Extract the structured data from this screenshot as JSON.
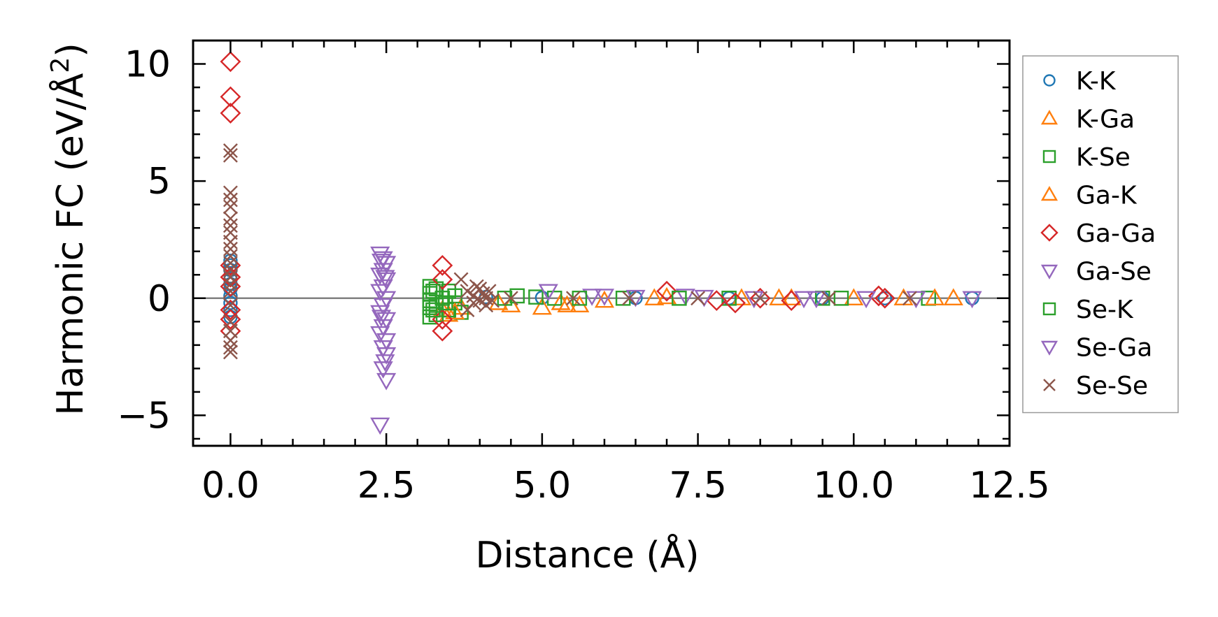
{
  "chart_data": {
    "type": "scatter",
    "title": "",
    "xlabel": "Distance (Å)",
    "ylabel_main": "Harmonic FC (eV/Å",
    "ylabel_sup": "2",
    "ylabel_close": ")",
    "xlim": [
      -0.6,
      12.5
    ],
    "ylim": [
      -6.3,
      11.0
    ],
    "xticks": [
      0.0,
      2.5,
      5.0,
      7.5,
      10.0,
      12.5
    ],
    "xtick_labels": [
      "0.0",
      "2.5",
      "5.0",
      "7.5",
      "10.0",
      "12.5"
    ],
    "yticks": [
      -5,
      0,
      5,
      10
    ],
    "ytick_labels": [
      "−5",
      "0",
      "5",
      "10"
    ],
    "reference_line_y": 0,
    "legend_position": "right",
    "series": [
      {
        "name": "K-K",
        "marker": "circle",
        "color": "#1f77b4",
        "points": [
          [
            0,
            1.6
          ],
          [
            0,
            1.2
          ],
          [
            0,
            0.8
          ],
          [
            0,
            0.4
          ],
          [
            0,
            0.1
          ],
          [
            0,
            -0.2
          ],
          [
            0,
            -0.5
          ],
          [
            0,
            -0.8
          ],
          [
            0,
            1.4
          ],
          [
            0,
            0.6
          ],
          [
            4.1,
            0.05
          ],
          [
            5.0,
            0.02
          ],
          [
            6.5,
            0.01
          ],
          [
            8.0,
            0.0
          ],
          [
            9.5,
            0.0
          ],
          [
            10.5,
            0.0
          ],
          [
            11.9,
            0.0
          ]
        ]
      },
      {
        "name": "K-Ga",
        "marker": "triangle-up",
        "color": "#ff7f0e",
        "points": [
          [
            3.4,
            -0.5
          ],
          [
            3.5,
            -0.7
          ],
          [
            3.7,
            -0.4
          ],
          [
            4.5,
            -0.3
          ],
          [
            5.0,
            -0.4
          ],
          [
            5.3,
            -0.2
          ],
          [
            5.6,
            -0.3
          ],
          [
            6.0,
            -0.1
          ],
          [
            7.0,
            0.05
          ],
          [
            8.2,
            0.0
          ],
          [
            9.0,
            0.0
          ],
          [
            10.0,
            0.0
          ],
          [
            10.8,
            0.0
          ],
          [
            11.6,
            0.0
          ]
        ]
      },
      {
        "name": "K-Se",
        "marker": "square",
        "color": "#2ca02c",
        "points": [
          [
            3.2,
            0.5
          ],
          [
            3.2,
            0.2
          ],
          [
            3.2,
            -0.1
          ],
          [
            3.2,
            -0.4
          ],
          [
            3.2,
            -0.8
          ],
          [
            3.3,
            0.4
          ],
          [
            3.3,
            -0.3
          ],
          [
            3.3,
            -0.7
          ],
          [
            3.4,
            0.0
          ],
          [
            3.5,
            0.3
          ],
          [
            3.5,
            -0.5
          ],
          [
            3.6,
            0.1
          ],
          [
            3.6,
            -0.2
          ],
          [
            3.7,
            -0.6
          ],
          [
            4.6,
            0.1
          ],
          [
            4.9,
            0.05
          ],
          [
            5.2,
            0.0
          ],
          [
            6.3,
            0.0
          ],
          [
            8.0,
            0.0
          ],
          [
            9.5,
            0.0
          ],
          [
            11.2,
            0.0
          ]
        ]
      },
      {
        "name": "Ga-K",
        "marker": "triangle-up",
        "color": "#ff7f0e",
        "points": [
          [
            3.6,
            -0.6
          ],
          [
            4.3,
            -0.2
          ],
          [
            5.4,
            -0.3
          ],
          [
            6.8,
            0.0
          ],
          [
            8.8,
            0.0
          ],
          [
            11.3,
            0.0
          ]
        ]
      },
      {
        "name": "Ga-Ga",
        "marker": "diamond",
        "color": "#d62728",
        "points": [
          [
            0,
            10.1
          ],
          [
            0,
            8.6
          ],
          [
            0,
            7.9
          ],
          [
            0,
            1.4
          ],
          [
            0,
            0.9
          ],
          [
            0,
            0.5
          ],
          [
            0,
            -0.5
          ],
          [
            0,
            -0.9
          ],
          [
            0,
            -1.4
          ],
          [
            3.4,
            1.4
          ],
          [
            3.4,
            0.8
          ],
          [
            3.4,
            -0.9
          ],
          [
            3.4,
            -1.4
          ],
          [
            7.0,
            0.3
          ],
          [
            7.8,
            -0.1
          ],
          [
            8.1,
            -0.2
          ],
          [
            8.5,
            0.0
          ],
          [
            9.0,
            -0.1
          ],
          [
            10.4,
            0.1
          ],
          [
            10.5,
            0.0
          ]
        ]
      },
      {
        "name": "Ga-Se",
        "marker": "triangle-down",
        "color": "#9467bd",
        "points": [
          [
            2.4,
            1.9
          ],
          [
            2.45,
            1.7
          ],
          [
            2.5,
            1.5
          ],
          [
            2.45,
            1.2
          ],
          [
            2.4,
            1.0
          ],
          [
            2.5,
            0.8
          ],
          [
            2.45,
            0.5
          ],
          [
            2.4,
            0.3
          ],
          [
            2.5,
            0.0
          ],
          [
            2.45,
            -0.3
          ],
          [
            2.4,
            -0.6
          ],
          [
            2.5,
            -0.9
          ],
          [
            2.45,
            -1.2
          ],
          [
            2.4,
            -1.5
          ],
          [
            2.5,
            -1.8
          ],
          [
            2.45,
            -2.1
          ],
          [
            2.5,
            -2.4
          ],
          [
            2.45,
            -3.0
          ],
          [
            2.5,
            -3.5
          ],
          [
            2.4,
            -5.4
          ],
          [
            5.1,
            0.3
          ],
          [
            5.8,
            0.1
          ],
          [
            6.5,
            0.05
          ],
          [
            7.3,
            0.1
          ],
          [
            8.4,
            0.0
          ],
          [
            9.2,
            0.0
          ],
          [
            10.2,
            0.0
          ],
          [
            11.9,
            0.0
          ]
        ]
      },
      {
        "name": "Se-K",
        "marker": "square",
        "color": "#2ca02c",
        "points": [
          [
            3.25,
            0.3
          ],
          [
            3.25,
            -0.5
          ],
          [
            3.45,
            -0.2
          ],
          [
            4.4,
            0.0
          ],
          [
            5.6,
            0.0
          ],
          [
            7.2,
            0.0
          ],
          [
            9.8,
            0.0
          ]
        ]
      },
      {
        "name": "Se-Ga",
        "marker": "triangle-down",
        "color": "#9467bd",
        "points": [
          [
            2.42,
            1.6
          ],
          [
            2.48,
            0.9
          ],
          [
            2.42,
            -0.8
          ],
          [
            2.48,
            -2.7
          ],
          [
            6.0,
            0.1
          ],
          [
            7.6,
            0.05
          ],
          [
            9.4,
            0.0
          ],
          [
            11.0,
            0.0
          ]
        ]
      },
      {
        "name": "Se-Se",
        "marker": "x",
        "color": "#8c564b",
        "points": [
          [
            0,
            6.3
          ],
          [
            0,
            6.1
          ],
          [
            0,
            4.5
          ],
          [
            0,
            4.2
          ],
          [
            0,
            3.9
          ],
          [
            0,
            3.4
          ],
          [
            0,
            3.1
          ],
          [
            0,
            2.8
          ],
          [
            0,
            2.4
          ],
          [
            0,
            2.1
          ],
          [
            0,
            1.8
          ],
          [
            0,
            1.5
          ],
          [
            0,
            1.2
          ],
          [
            0,
            0.9
          ],
          [
            0,
            0.6
          ],
          [
            0,
            0.3
          ],
          [
            0,
            -0.3
          ],
          [
            0,
            -1.0
          ],
          [
            0,
            -1.4
          ],
          [
            0,
            -1.8
          ],
          [
            0,
            -2.1
          ],
          [
            0,
            -2.3
          ],
          [
            3.7,
            0.8
          ],
          [
            3.8,
            0.3
          ],
          [
            3.9,
            0.1
          ],
          [
            3.95,
            0.5
          ],
          [
            4.0,
            0.4
          ],
          [
            4.0,
            -0.1
          ],
          [
            4.05,
            0.2
          ],
          [
            4.1,
            0.0
          ],
          [
            4.1,
            -0.3
          ],
          [
            4.15,
            0.3
          ],
          [
            4.2,
            -0.1
          ],
          [
            3.8,
            -0.5
          ],
          [
            3.9,
            -0.2
          ],
          [
            4.5,
            0.0
          ],
          [
            5.5,
            0.0
          ],
          [
            6.4,
            0.0
          ],
          [
            7.5,
            0.0
          ],
          [
            8.5,
            0.0
          ],
          [
            9.6,
            0.0
          ],
          [
            10.9,
            0.0
          ]
        ]
      }
    ]
  }
}
